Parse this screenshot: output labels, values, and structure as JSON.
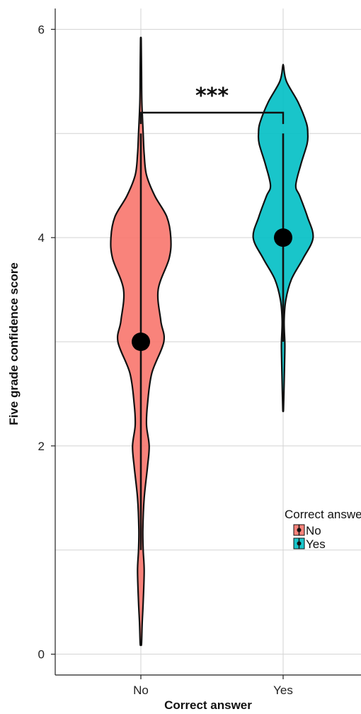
{
  "chart_data": {
    "type": "violin",
    "xlabel": "Correct answer",
    "ylabel": "Five grade confidence score",
    "categories": [
      "No",
      "Yes"
    ],
    "ylim": [
      -0.2,
      6.2
    ],
    "yticks": [
      0,
      2,
      4,
      6
    ],
    "grid": true,
    "series": [
      {
        "name": "No",
        "color": "#F8766D",
        "range": [
          0.1,
          5.9
        ],
        "whisker": [
          1.0,
          5.0
        ],
        "point": 3.0,
        "density": [
          [
            0.1,
            0.02
          ],
          [
            0.3,
            0.04
          ],
          [
            0.5,
            0.07
          ],
          [
            0.8,
            0.1
          ],
          [
            1.0,
            0.07
          ],
          [
            1.2,
            0.06
          ],
          [
            1.5,
            0.1
          ],
          [
            1.8,
            0.2
          ],
          [
            2.0,
            0.25
          ],
          [
            2.2,
            0.17
          ],
          [
            2.4,
            0.2
          ],
          [
            2.7,
            0.33
          ],
          [
            3.0,
            0.69
          ],
          [
            3.2,
            0.6
          ],
          [
            3.5,
            0.52
          ],
          [
            3.8,
            0.85
          ],
          [
            4.0,
            0.9
          ],
          [
            4.2,
            0.78
          ],
          [
            4.4,
            0.42
          ],
          [
            4.6,
            0.17
          ],
          [
            4.8,
            0.1
          ],
          [
            5.0,
            0.07
          ],
          [
            5.3,
            0.03
          ],
          [
            5.6,
            0.02
          ],
          [
            5.9,
            0.01
          ]
        ]
      },
      {
        "name": "Yes",
        "color": "#00BFC4",
        "range": [
          2.35,
          5.65
        ],
        "whisker": [
          3.0,
          5.0
        ],
        "point": 4.0,
        "density": [
          [
            2.35,
            0.01
          ],
          [
            2.6,
            0.03
          ],
          [
            2.9,
            0.05
          ],
          [
            3.0,
            0.05
          ],
          [
            3.2,
            0.03
          ],
          [
            3.4,
            0.08
          ],
          [
            3.6,
            0.25
          ],
          [
            3.8,
            0.6
          ],
          [
            4.0,
            0.9
          ],
          [
            4.2,
            0.73
          ],
          [
            4.4,
            0.5
          ],
          [
            4.5,
            0.38
          ],
          [
            4.7,
            0.53
          ],
          [
            4.9,
            0.72
          ],
          [
            5.0,
            0.74
          ],
          [
            5.1,
            0.7
          ],
          [
            5.3,
            0.45
          ],
          [
            5.5,
            0.1
          ],
          [
            5.65,
            0.01
          ]
        ]
      }
    ],
    "significance": {
      "label": "***",
      "y": 5.2
    },
    "legend": {
      "title": "Correct answer",
      "entries": [
        "No",
        "Yes"
      ],
      "position": "right"
    }
  }
}
